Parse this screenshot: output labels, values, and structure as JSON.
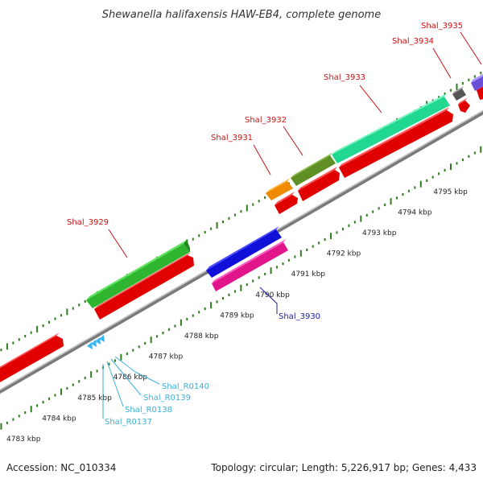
{
  "title": "Shewanella halifaxensis HAW-EB4, complete genome",
  "accession": "Accession: NC_010334",
  "summary": "Topology: circular; Length: 5,226,917 bp; Genes: 4,433",
  "colors": {
    "backbone": "#8a8a8a",
    "tick": "#2e7d1c",
    "cds": "#ff1a1a",
    "label_red": "#cc1111",
    "label_blue": "#1a1aa0",
    "label_cyan": "#3ab0d8"
  },
  "tick_labels": [
    "4783 kbp",
    "4784 kbp",
    "4785 kbp",
    "4786 kbp",
    "4787 kbp",
    "4788 kbp",
    "4789 kbp",
    "4790 kbp",
    "4791 kbp",
    "4792 kbp",
    "4793 kbp",
    "4794 kbp",
    "4795 kbp"
  ],
  "gene_labels": {
    "shal_3929": "Shal_3929",
    "shal_3930": "Shal_3930",
    "shal_3931": "Shal_3931",
    "shal_3932": "Shal_3932",
    "shal_3933": "Shal_3933",
    "shal_3934": "Shal_3934",
    "shal_3935": "Shal_3935",
    "shal_r0137": "Shal_R0137",
    "shal_r0138": "Shal_R0138",
    "shal_r0139": "Shal_R0139",
    "shal_r0140": "Shal_R0140"
  }
}
